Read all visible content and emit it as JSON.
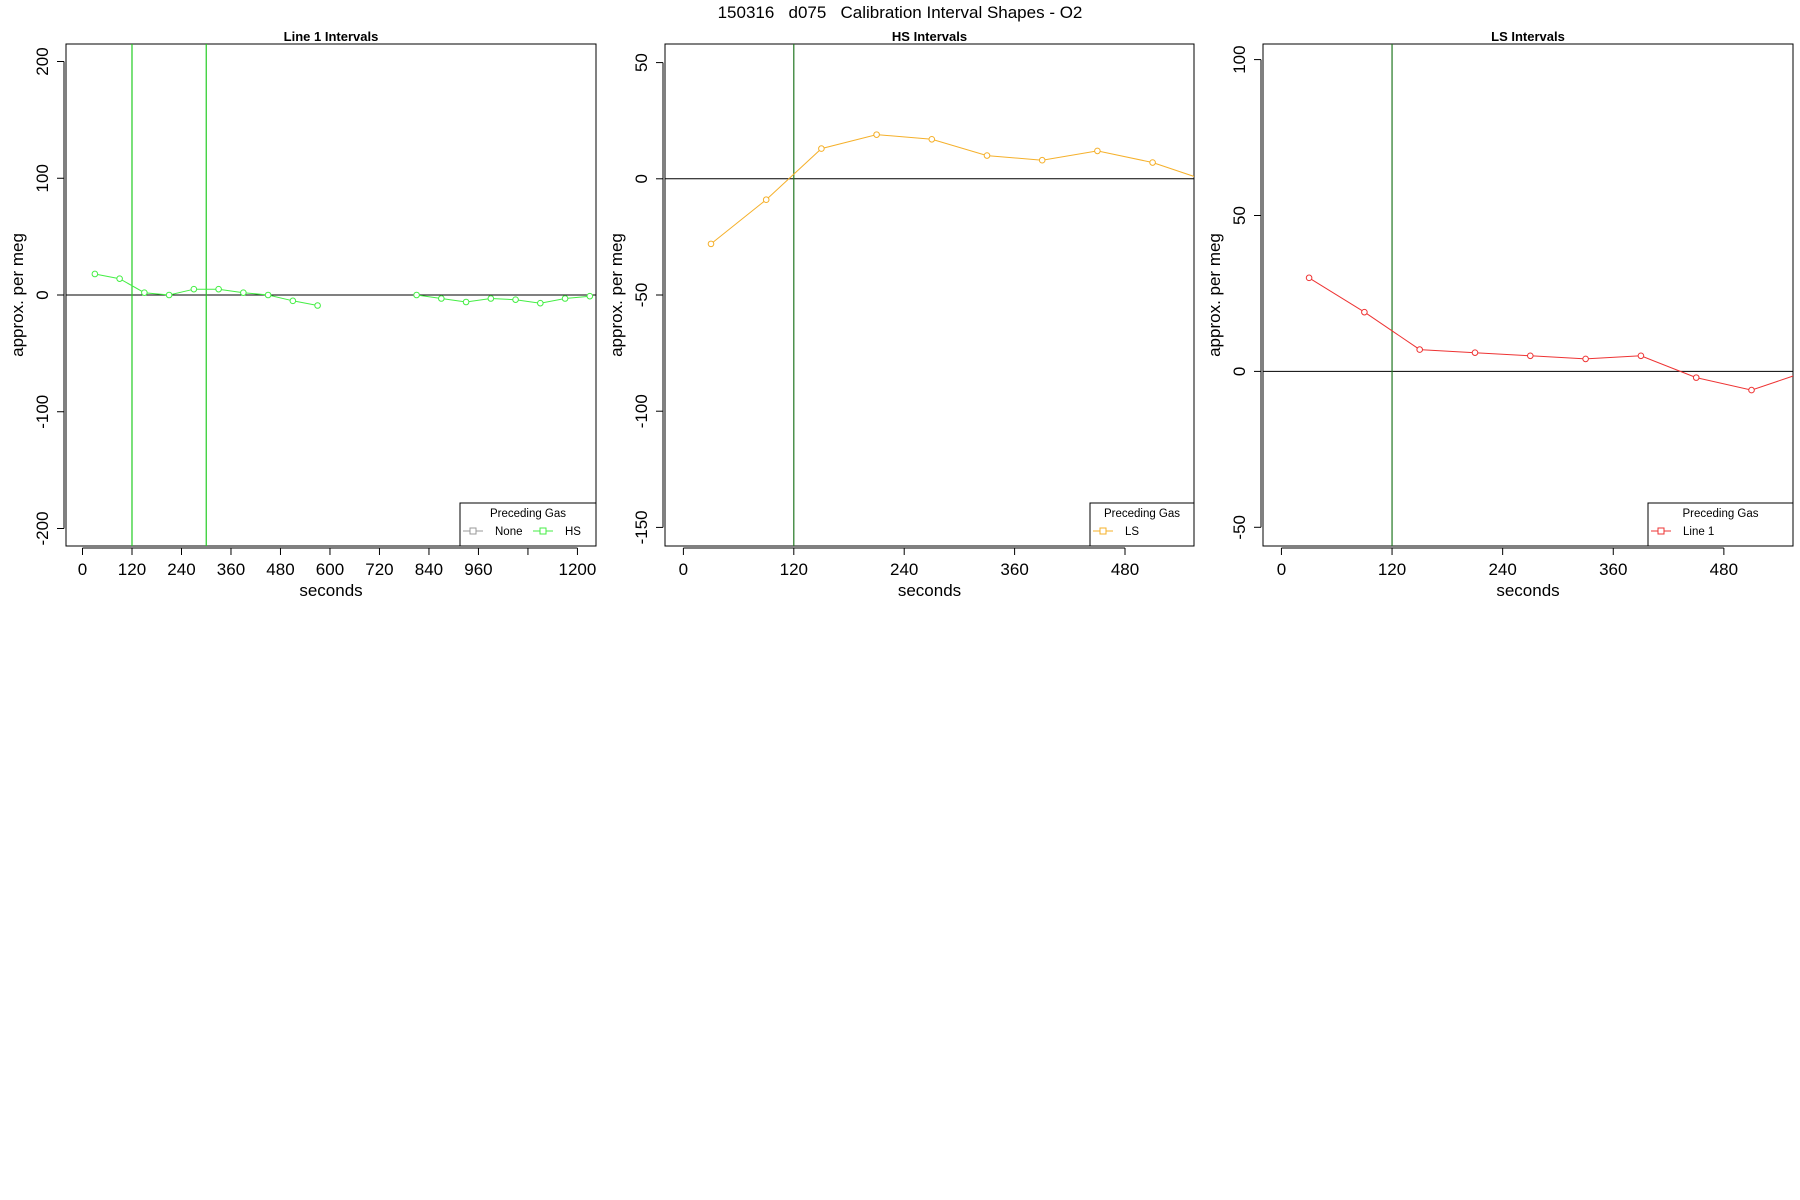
{
  "page": {
    "title": "150316   d075   Calibration Interval Shapes - O2"
  },
  "colors": {
    "none": "#999999",
    "hs": "#44ee44",
    "ls": "#f5b02a",
    "line1": "#ee3333",
    "marker_line_line1": "#22aa22",
    "marker_line_other": "#227722",
    "zero_line": "#000000"
  },
  "chart_data": [
    {
      "type": "line",
      "title": "Line 1 Intervals",
      "xlabel": "seconds",
      "ylabel": "approx. per meg",
      "xlim": [
        -40,
        1245
      ],
      "ylim": [
        -215,
        215
      ],
      "xticks": [
        0,
        120,
        240,
        360,
        480,
        600,
        720,
        840,
        960,
        1080,
        1200
      ],
      "xtick_labels": [
        "0",
        "120",
        "240",
        "360",
        "480",
        "600",
        "720",
        "840",
        "960",
        "",
        "1200"
      ],
      "yticks": [
        -200,
        -100,
        0,
        100,
        200
      ],
      "ytick_labels": [
        "-200",
        "-100",
        "0",
        "100",
        "200"
      ],
      "vlines": [
        120,
        300
      ],
      "vline_color": "#22cc22",
      "hline": 0,
      "grid": false,
      "legend": {
        "title": "Preceding Gas",
        "position": "bottom-right",
        "entries": [
          {
            "label": "None",
            "color": "#999999"
          },
          {
            "label": "HS",
            "color": "#44ee44"
          }
        ]
      },
      "series": [
        {
          "name": "HS",
          "color": "#44ee44",
          "segments": [
            [
              [
                30,
                18
              ],
              [
                90,
                14
              ],
              [
                150,
                2
              ],
              [
                210,
                0
              ],
              [
                270,
                5
              ],
              [
                330,
                5
              ],
              [
                390,
                2
              ],
              [
                450,
                0
              ],
              [
                510,
                -5
              ],
              [
                570,
                -9
              ]
            ],
            [
              [
                810,
                0
              ],
              [
                870,
                -3
              ],
              [
                930,
                -6
              ],
              [
                990,
                -3
              ],
              [
                1050,
                -4
              ],
              [
                1110,
                -7
              ],
              [
                1170,
                -3
              ],
              [
                1230,
                -1
              ]
            ]
          ]
        }
      ]
    },
    {
      "type": "line",
      "title": "HS Intervals",
      "xlabel": "seconds",
      "ylabel": "approx. per meg",
      "xlim": [
        -20,
        555
      ],
      "ylim": [
        -158,
        58
      ],
      "xticks": [
        0,
        120,
        240,
        360,
        480
      ],
      "xtick_labels": [
        "0",
        "120",
        "240",
        "360",
        "480"
      ],
      "yticks": [
        -150,
        -100,
        -50,
        0,
        50
      ],
      "ytick_labels": [
        "-150",
        "-100",
        "-50",
        "0",
        "50"
      ],
      "vlines": [
        120
      ],
      "vline_color": "#227722",
      "hline": 0,
      "grid": false,
      "legend": {
        "title": "Preceding Gas",
        "position": "bottom-right",
        "entries": [
          {
            "label": "LS",
            "color": "#f5b02a"
          }
        ]
      },
      "series": [
        {
          "name": "LS",
          "color": "#f5b02a",
          "segments": [
            [
              [
                30,
                -28
              ],
              [
                90,
                -9
              ],
              [
                150,
                13
              ],
              [
                210,
                19
              ],
              [
                270,
                17
              ],
              [
                330,
                10
              ],
              [
                390,
                8
              ],
              [
                450,
                12
              ],
              [
                510,
                7
              ],
              [
                570,
                -1
              ]
            ]
          ]
        }
      ]
    },
    {
      "type": "line",
      "title": "LS Intervals",
      "xlabel": "seconds",
      "ylabel": "approx. per meg",
      "xlim": [
        -20,
        555
      ],
      "ylim": [
        -56,
        105
      ],
      "xticks": [
        0,
        120,
        240,
        360,
        480
      ],
      "xtick_labels": [
        "0",
        "120",
        "240",
        "360",
        "480"
      ],
      "yticks": [
        -50,
        0,
        50,
        100
      ],
      "ytick_labels": [
        "-50",
        "0",
        "50",
        "100"
      ],
      "vlines": [
        120
      ],
      "vline_color": "#227722",
      "hline": 0,
      "grid": false,
      "legend": {
        "title": "Preceding Gas",
        "position": "bottom-right",
        "entries": [
          {
            "label": "Line 1",
            "color": "#ee3333"
          }
        ]
      },
      "series": [
        {
          "name": "Line 1",
          "color": "#ee3333",
          "segments": [
            [
              [
                30,
                30
              ],
              [
                90,
                19
              ],
              [
                150,
                7
              ],
              [
                210,
                6
              ],
              [
                270,
                5
              ],
              [
                330,
                4
              ],
              [
                390,
                5
              ],
              [
                450,
                -2
              ],
              [
                510,
                -6
              ],
              [
                570,
                0
              ]
            ]
          ]
        }
      ]
    }
  ]
}
